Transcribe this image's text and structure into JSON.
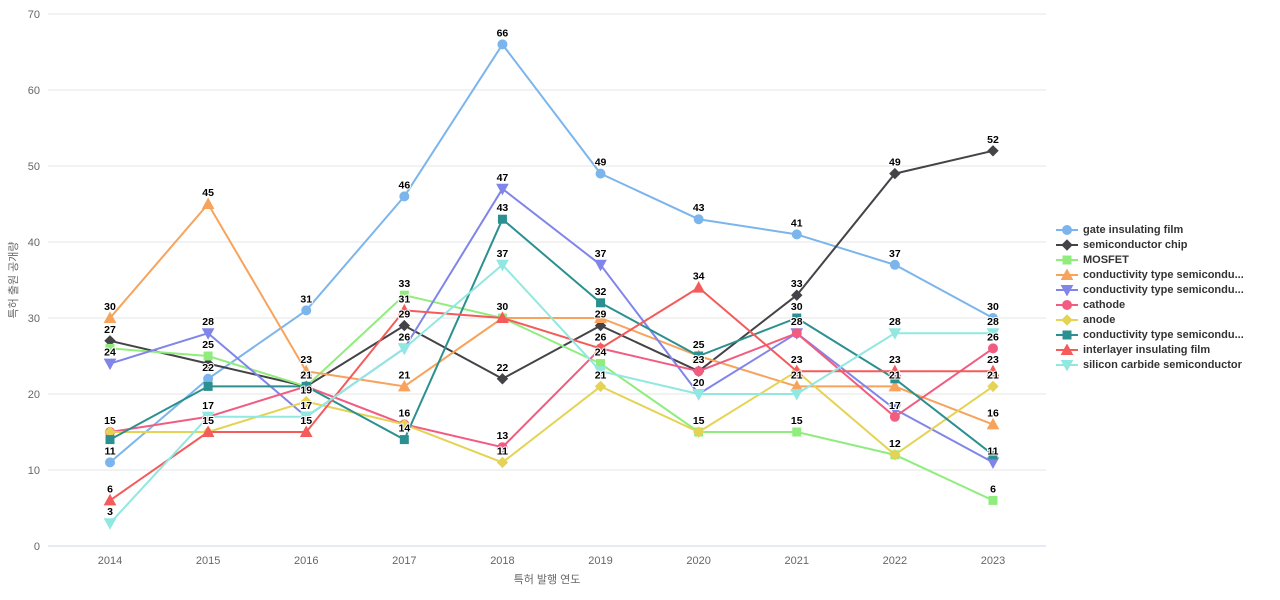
{
  "chart_data": {
    "type": "line",
    "title": "",
    "xlabel": "특허 발행 연도",
    "ylabel": "특허 출원 공개량",
    "categories": [
      "2014",
      "2015",
      "2016",
      "2017",
      "2018",
      "2019",
      "2020",
      "2021",
      "2022",
      "2023"
    ],
    "y_ticks": [
      0,
      10,
      20,
      30,
      40,
      50,
      60,
      70
    ],
    "ylim": [
      0,
      70
    ],
    "grid": true,
    "legend_position": "right",
    "series": [
      {
        "name": "gate insulating film",
        "color": "#7cb5ec",
        "marker": "circle",
        "values": [
          11,
          22,
          31,
          46,
          66,
          49,
          43,
          41,
          37,
          30
        ],
        "hidden_label_indices": []
      },
      {
        "name": "semiconductor chip",
        "color": "#434348",
        "marker": "diamond",
        "values": [
          27,
          24,
          21,
          29,
          22,
          29,
          23,
          33,
          49,
          52
        ],
        "hidden_label_indices": [
          1
        ]
      },
      {
        "name": "MOSFET",
        "color": "#90ed7d",
        "marker": "square",
        "values": [
          26,
          25,
          21,
          33,
          30,
          24,
          15,
          15,
          12,
          6
        ],
        "hidden_label_indices": [
          0,
          2,
          4,
          8
        ]
      },
      {
        "name": "conductivity type semicondu...",
        "color": "#f7a35c",
        "marker": "triangle",
        "values": [
          30,
          45,
          23,
          21,
          30,
          30,
          25,
          21,
          21,
          16
        ],
        "hidden_label_indices": [
          5,
          6
        ]
      },
      {
        "name": "conductivity type semicondu...",
        "color": "#8085e9",
        "marker": "triangle-down",
        "values": [
          24,
          28,
          17,
          26,
          47,
          37,
          20,
          28,
          18,
          11
        ],
        "hidden_label_indices": [
          2,
          3,
          6,
          7,
          8
        ]
      },
      {
        "name": "cathode",
        "color": "#f15c80",
        "marker": "circle",
        "values": [
          15,
          17,
          21,
          16,
          13,
          26,
          23,
          28,
          17,
          26
        ],
        "hidden_label_indices": [
          1,
          2,
          6
        ]
      },
      {
        "name": "anode",
        "color": "#e4d354",
        "marker": "diamond",
        "values": [
          15,
          15,
          19,
          16,
          11,
          21,
          15,
          23,
          12,
          21
        ],
        "hidden_label_indices": [
          0,
          1,
          3,
          6
        ]
      },
      {
        "name": "conductivity type semicondu...",
        "color": "#2b908f",
        "marker": "square",
        "values": [
          14,
          21,
          21,
          14,
          43,
          32,
          25,
          30,
          22,
          12
        ],
        "hidden_label_indices": [
          0,
          1,
          2,
          8,
          9
        ]
      },
      {
        "name": "interlayer insulating film",
        "color": "#f45b5b",
        "marker": "triangle",
        "values": [
          6,
          15,
          15,
          31,
          30,
          26,
          34,
          23,
          23,
          23
        ],
        "hidden_label_indices": [
          4,
          5,
          7
        ]
      },
      {
        "name": "silicon carbide semiconductor",
        "color": "#91e8e1",
        "marker": "triangle-down",
        "values": [
          3,
          17,
          17,
          26,
          37,
          23,
          20,
          20,
          28,
          28
        ],
        "hidden_label_indices": [
          5,
          7
        ]
      }
    ]
  }
}
